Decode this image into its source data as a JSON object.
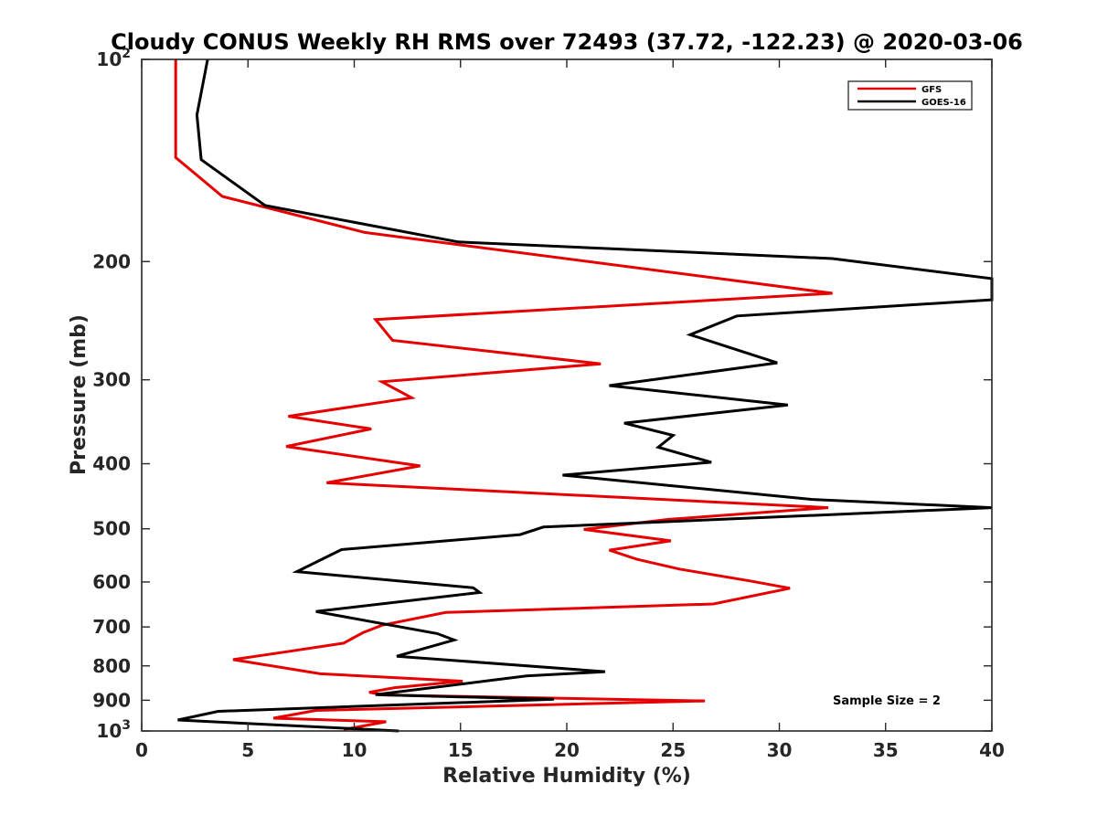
{
  "chart_data": {
    "type": "line",
    "title": "Cloudy CONUS Weekly RH RMS over 72493 (37.72, -122.23) @ 2020-03-06",
    "xlabel": "Relative Humidity (%)",
    "ylabel": "Pressure (mb)",
    "xlim": [
      0,
      40
    ],
    "ylim": [
      100,
      1000
    ],
    "y_scale": "log",
    "y_reversed": true,
    "x_ticks": [
      0,
      5,
      10,
      15,
      20,
      25,
      30,
      35,
      40
    ],
    "y_ticks": [
      100,
      200,
      300,
      400,
      500,
      600,
      700,
      800,
      900,
      1000
    ],
    "y_tick_labels": [
      "10^2",
      "200",
      "300",
      "400",
      "500",
      "600",
      "700",
      "800",
      "900",
      "10^3"
    ],
    "grid": false,
    "legend_position": "top-right",
    "annotation": "Sample Size = 2",
    "series": [
      {
        "name": "GFS",
        "color": "#e60000",
        "points": [
          [
            1.6,
            100
          ],
          [
            1.6,
            140
          ],
          [
            3.8,
            160
          ],
          [
            10.5,
            181
          ],
          [
            32.5,
            223
          ],
          [
            11.0,
            244
          ],
          [
            11.8,
            262
          ],
          [
            21.6,
            284
          ],
          [
            11.3,
            302
          ],
          [
            12.7,
            319
          ],
          [
            6.9,
            340
          ],
          [
            10.8,
            355
          ],
          [
            6.8,
            377
          ],
          [
            13.1,
            403
          ],
          [
            8.7,
            427
          ],
          [
            32.3,
            465
          ],
          [
            24.8,
            484
          ],
          [
            20.8,
            501
          ],
          [
            24.9,
            521
          ],
          [
            22.0,
            538
          ],
          [
            23.3,
            555
          ],
          [
            25.3,
            574
          ],
          [
            28.5,
            597
          ],
          [
            30.5,
            613
          ],
          [
            26.9,
            647
          ],
          [
            14.3,
            666
          ],
          [
            11.3,
            696
          ],
          [
            10.4,
            714
          ],
          [
            9.5,
            740
          ],
          [
            6.7,
            763
          ],
          [
            4.3,
            783
          ],
          [
            8.4,
            822
          ],
          [
            15.1,
            843
          ],
          [
            11.9,
            862
          ],
          [
            10.7,
            876
          ],
          [
            11.4,
            884
          ],
          [
            26.5,
            902
          ],
          [
            8.2,
            932
          ],
          [
            6.2,
            957
          ],
          [
            11.5,
            969
          ],
          [
            9.5,
            995
          ]
        ]
      },
      {
        "name": "GOES-16",
        "color": "#000000",
        "points": [
          [
            3.1,
            100
          ],
          [
            2.6,
            121
          ],
          [
            2.8,
            141
          ],
          [
            5.8,
            165
          ],
          [
            14.9,
            187
          ],
          [
            32.5,
            198
          ],
          [
            40.0,
            212
          ],
          [
            40.0,
            228
          ],
          [
            28.0,
            241
          ],
          [
            25.8,
            257
          ],
          [
            29.9,
            283
          ],
          [
            22.0,
            306
          ],
          [
            30.4,
            327
          ],
          [
            22.7,
            348
          ],
          [
            25.0,
            363
          ],
          [
            24.3,
            378
          ],
          [
            26.8,
            398
          ],
          [
            19.8,
            416
          ],
          [
            31.5,
            452
          ],
          [
            40.0,
            465
          ],
          [
            18.9,
            497
          ],
          [
            17.8,
            510
          ],
          [
            9.4,
            537
          ],
          [
            7.3,
            579
          ],
          [
            15.6,
            612
          ],
          [
            15.9,
            622
          ],
          [
            8.2,
            664
          ],
          [
            13.9,
            716
          ],
          [
            14.7,
            732
          ],
          [
            12.0,
            774
          ],
          [
            21.8,
            816
          ],
          [
            18.1,
            828
          ],
          [
            11.0,
            883
          ],
          [
            19.4,
            897
          ],
          [
            3.6,
            935
          ],
          [
            1.7,
            963
          ],
          [
            12.1,
            1000
          ]
        ]
      }
    ]
  }
}
